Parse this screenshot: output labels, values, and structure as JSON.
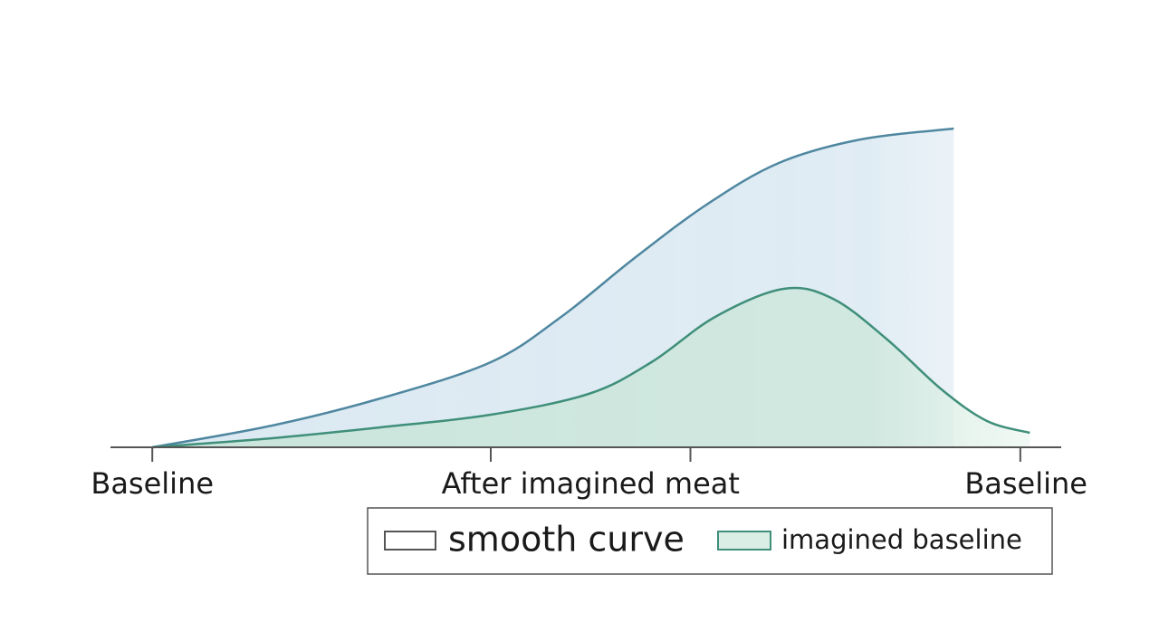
{
  "chart_data": {
    "type": "area",
    "xlim": [
      0,
      100
    ],
    "ylim": [
      0,
      100
    ],
    "xticks": [
      4.4,
      40,
      61,
      95.7
    ],
    "x_labels": [
      {
        "value": 4.4,
        "label": "Baseline"
      },
      {
        "value": 50.5,
        "label": "After imagined meat"
      },
      {
        "value": 96.3,
        "label": "Baseline"
      }
    ],
    "legend": "bottom",
    "series": [
      {
        "name": "smooth curve",
        "color": "#4f87a0",
        "fill": "#cfe1ee",
        "x": [
          4.4,
          17,
          28.4,
          40,
          47.4,
          55,
          62.7,
          70.3,
          78.9,
          88.7
        ],
        "values": [
          0,
          6,
          13.5,
          23.5,
          36,
          52,
          67,
          78.5,
          85,
          88
        ]
      },
      {
        "name": "imagined baseline",
        "color": "#3f8f7a",
        "fill": "#c3e3d3",
        "x": [
          4.4,
          17,
          28.4,
          40,
          50.3,
          56.9,
          63.6,
          70.8,
          76,
          81.7,
          87.4,
          92.2,
          96.7
        ],
        "values": [
          0,
          2.5,
          5.5,
          9,
          14.75,
          23.5,
          36,
          43.75,
          41,
          29.75,
          16,
          7.25,
          4
        ]
      }
    ]
  }
}
